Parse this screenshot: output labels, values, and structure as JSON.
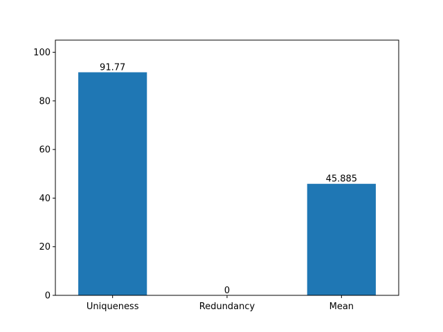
{
  "chart_data": {
    "type": "bar",
    "title": "",
    "xlabel": "",
    "ylabel": "",
    "categories": [
      "Uniqueness",
      "Redundancy",
      "Mean"
    ],
    "values": [
      91.77,
      0,
      45.885
    ],
    "value_labels": [
      "91.77",
      "0",
      "45.885"
    ],
    "ylim": [
      0,
      105
    ],
    "yticks": [
      0,
      20,
      40,
      60,
      80,
      100
    ],
    "ytick_labels": [
      "0",
      "20",
      "40",
      "60",
      "80",
      "100"
    ],
    "grid": false,
    "legend": "none",
    "bar_color": "#1f77b4"
  }
}
